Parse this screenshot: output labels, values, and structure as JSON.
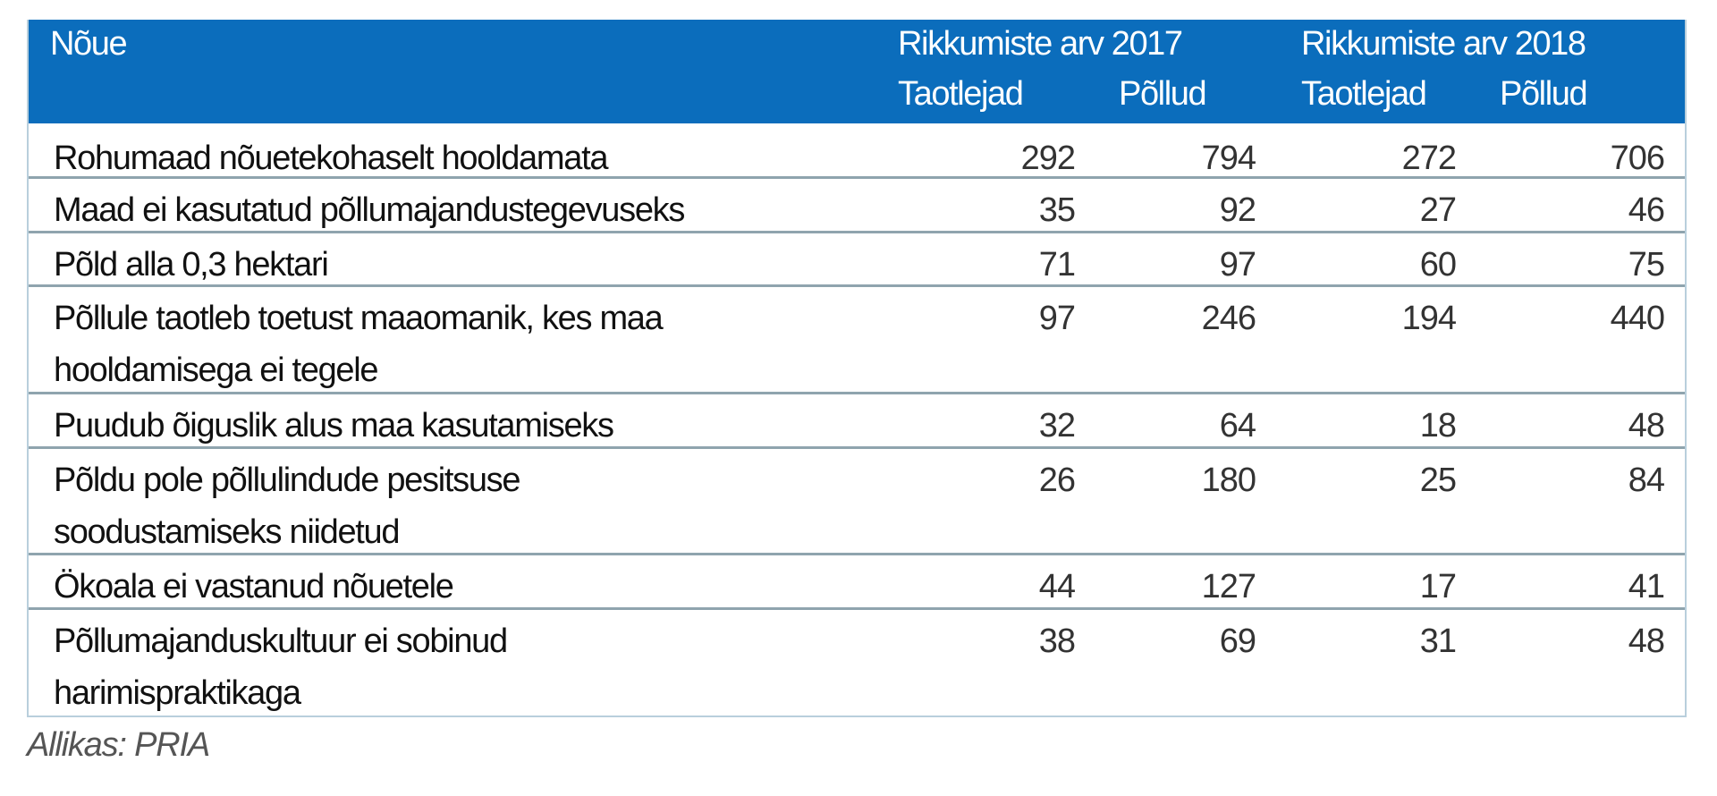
{
  "header": {
    "col_requirement": "Nõue",
    "group_2017": "Rikkumiste arv 2017",
    "group_2018": "Rikkumiste arv 2018",
    "sub_applicants": "Taotlejad",
    "sub_fields": "Põllud"
  },
  "rows": [
    {
      "label": "Rohumaad nõuetekohaselt hooldamata",
      "v": [
        "292",
        "794",
        "272",
        "706"
      ]
    },
    {
      "label": "Maad ei kasutatud põllumajandustegevuseks",
      "v": [
        "35",
        "92",
        "27",
        "46"
      ]
    },
    {
      "label": "Põld alla 0,3 hektari",
      "v": [
        "71",
        "97",
        "60",
        "75"
      ]
    },
    {
      "label": "Põllule taotleb toetust maaomanik, kes maa hooldamisega ei tegele",
      "v": [
        "97",
        "246",
        "194",
        "440"
      ]
    },
    {
      "label": "Puudub õiguslik alus maa kasutamiseks",
      "v": [
        "32",
        "64",
        "18",
        "48"
      ]
    },
    {
      "label": "Põldu pole põllulindude pesitsuse soodustamiseks niidetud",
      "v": [
        "26",
        "180",
        "25",
        "84"
      ]
    },
    {
      "label": "Ökoala ei vastanud nõuetele",
      "v": [
        "44",
        "127",
        "17",
        "41"
      ]
    },
    {
      "label": "Põllumajanduskultuur ei sobinud harimispraktikaga",
      "v": [
        "38",
        "69",
        "31",
        "48"
      ]
    }
  ],
  "caption": "Allikas: PRIA",
  "colors": {
    "header_bg": "#0b6dbc",
    "header_text": "#ffffff",
    "row_divider": "#8fa4ae"
  }
}
